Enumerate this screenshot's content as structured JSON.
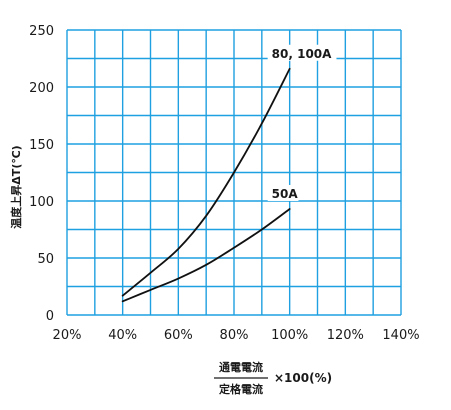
{
  "chart_data": {
    "type": "line",
    "title": "",
    "xlabel": "",
    "ylabel": "温度上昇ΔT(℃)",
    "xlim": [
      20,
      140
    ],
    "ylim": [
      0,
      250
    ],
    "x_ticks": [
      20,
      30,
      40,
      50,
      60,
      70,
      80,
      90,
      100,
      110,
      120,
      130,
      140
    ],
    "x_tick_labels": [
      "20%",
      "40%",
      "60%",
      "80%",
      "100%",
      "120%",
      "140%"
    ],
    "x_tick_label_values": [
      20,
      40,
      60,
      80,
      100,
      120,
      140
    ],
    "y_ticks": [
      0,
      25,
      50,
      75,
      100,
      125,
      150,
      175,
      200,
      225,
      250
    ],
    "y_tick_labels": [
      "0",
      "50",
      "100",
      "150",
      "200",
      "250"
    ],
    "y_tick_label_values": [
      0,
      50,
      100,
      150,
      200,
      250
    ],
    "grid": true,
    "grid_color": "#1fa0e0",
    "line_color": "#111111",
    "series": [
      {
        "name": "80, 100A",
        "points": [
          [
            40,
            17
          ],
          [
            50,
            37
          ],
          [
            60,
            58
          ],
          [
            70,
            87
          ],
          [
            80,
            125
          ],
          [
            90,
            168
          ],
          [
            100,
            216
          ]
        ]
      },
      {
        "name": "50A",
        "points": [
          [
            40,
            12
          ],
          [
            50,
            22
          ],
          [
            60,
            32
          ],
          [
            70,
            44
          ],
          [
            80,
            59
          ],
          [
            90,
            75
          ],
          [
            100,
            93
          ]
        ]
      }
    ],
    "x_axis_formula": {
      "numerator": "通電電流",
      "denominator": "定格電流",
      "multiplier": "×100(%)"
    }
  }
}
